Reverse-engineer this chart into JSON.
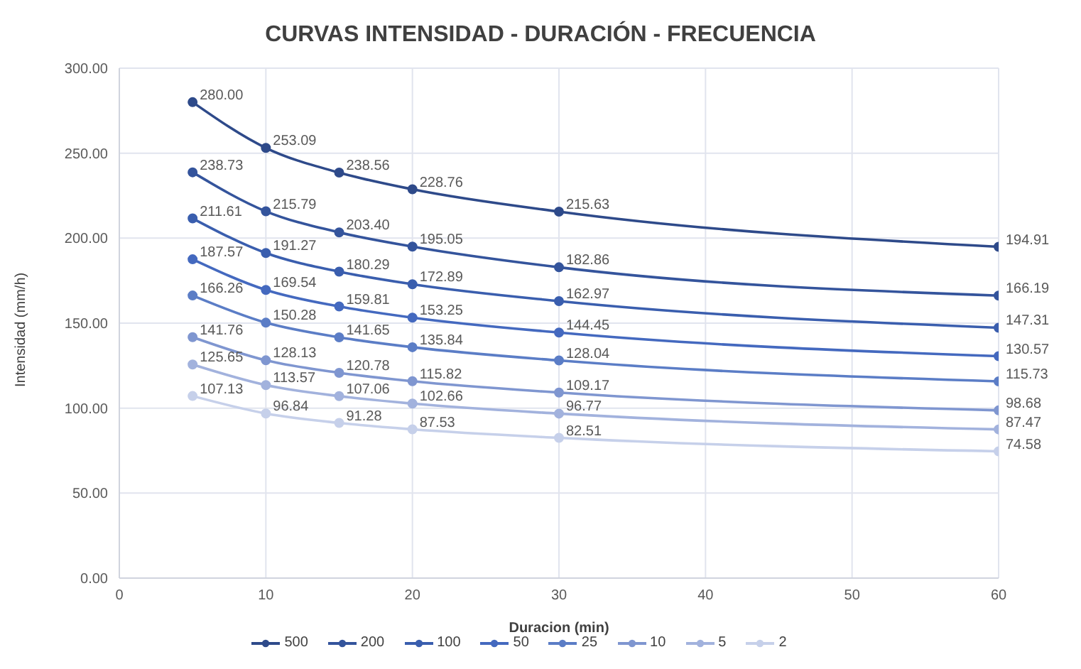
{
  "chart_data": {
    "type": "line",
    "title": "CURVAS INTENSIDAD - DURACIÓN - FRECUENCIA",
    "xlabel": "Duracion (min)",
    "ylabel": "Intensidad (mm/h)",
    "x": [
      5,
      10,
      15,
      20,
      30,
      60
    ],
    "xlim": [
      0,
      60
    ],
    "xticks": [
      0,
      10,
      20,
      30,
      40,
      50,
      60
    ],
    "ylim": [
      0,
      300
    ],
    "yticks": [
      {
        "value": 0,
        "label": "0.00"
      },
      {
        "value": 50,
        "label": "50.00"
      },
      {
        "value": 100,
        "label": "100.00"
      },
      {
        "value": 150,
        "label": "150.00"
      },
      {
        "value": 200,
        "label": "200.00"
      },
      {
        "value": 250,
        "label": "250.00"
      },
      {
        "value": 300,
        "label": "300.00"
      }
    ],
    "grid": true,
    "legend": "bottom",
    "marker": "circle",
    "line_style": "solid",
    "series": [
      {
        "name": "500",
        "color": "#2e4a8a",
        "values": [
          280.0,
          253.09,
          238.56,
          228.76,
          215.63,
          194.91
        ],
        "value_labels": [
          "280.00",
          "253.09",
          "238.56",
          "228.76",
          "215.63",
          "194.91"
        ]
      },
      {
        "name": "200",
        "color": "#34549c",
        "values": [
          238.73,
          215.79,
          203.4,
          195.05,
          182.86,
          166.19
        ],
        "value_labels": [
          "238.73",
          "215.79",
          "203.40",
          "195.05",
          "182.86",
          "166.19"
        ]
      },
      {
        "name": "100",
        "color": "#3a5eae",
        "values": [
          211.61,
          191.27,
          180.29,
          172.89,
          162.97,
          147.31
        ],
        "value_labels": [
          "211.61",
          "191.27",
          "180.29",
          "172.89",
          "162.97",
          "147.31"
        ]
      },
      {
        "name": "50",
        "color": "#4469bf",
        "values": [
          187.57,
          169.54,
          159.81,
          153.25,
          144.45,
          130.57
        ],
        "value_labels": [
          "187.57",
          "169.54",
          "159.81",
          "153.25",
          "144.45",
          "130.57"
        ]
      },
      {
        "name": "25",
        "color": "#5b7dc6",
        "values": [
          166.26,
          150.28,
          141.65,
          135.84,
          128.04,
          115.73
        ],
        "value_labels": [
          "166.26",
          "150.28",
          "141.65",
          "135.84",
          "128.04",
          "115.73"
        ]
      },
      {
        "name": "10",
        "color": "#7f96d0",
        "values": [
          141.76,
          128.13,
          120.78,
          115.82,
          109.17,
          98.68
        ],
        "value_labels": [
          "141.76",
          "128.13",
          "120.78",
          "115.82",
          "109.17",
          "98.68"
        ]
      },
      {
        "name": "5",
        "color": "#a2b2dd",
        "values": [
          125.65,
          113.57,
          107.06,
          102.66,
          96.77,
          87.47
        ],
        "value_labels": [
          "125.65",
          "113.57",
          "107.06",
          "102.66",
          "96.77",
          "87.47"
        ]
      },
      {
        "name": "2",
        "color": "#c6d0ea",
        "values": [
          107.13,
          96.84,
          91.28,
          87.53,
          82.51,
          74.58
        ],
        "value_labels": [
          "107.13",
          "96.84",
          "91.28",
          "87.53",
          "82.51",
          "74.58"
        ]
      }
    ]
  }
}
